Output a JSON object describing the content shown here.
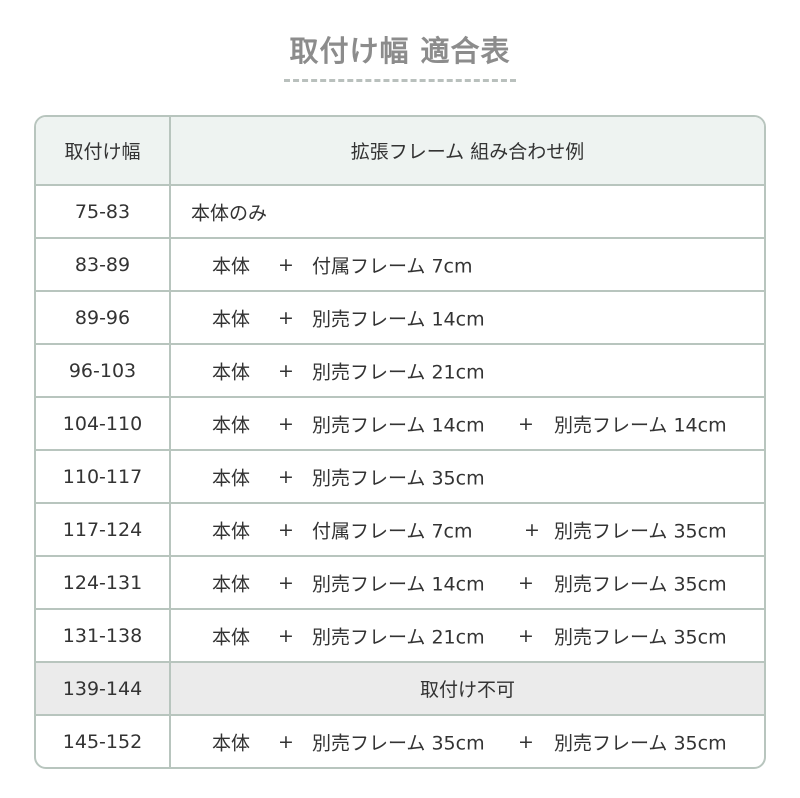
{
  "title": "取付け幅 適合表",
  "table": {
    "headers": [
      "取付け幅",
      "拡張フレーム 組み合わせ例"
    ],
    "rows": [
      {
        "width": "75-83",
        "parts": [
          "本体のみ"
        ]
      },
      {
        "width": "83-89",
        "parts": [
          "本体",
          "+",
          "付属フレーム 7cm"
        ]
      },
      {
        "width": "89-96",
        "parts": [
          "本体",
          "+",
          "別売フレーム 14cm"
        ]
      },
      {
        "width": "96-103",
        "parts": [
          "本体",
          "+",
          "別売フレーム 21cm"
        ]
      },
      {
        "width": "104-110",
        "parts": [
          "本体",
          "+",
          "別売フレーム 14cm",
          "+",
          "別売フレーム 14cm"
        ]
      },
      {
        "width": "110-117",
        "parts": [
          "本体",
          "+",
          "別売フレーム 35cm"
        ]
      },
      {
        "width": "117-124",
        "parts": [
          "本体",
          "+",
          "付属フレーム 7cm",
          "+",
          "別売フレーム 35cm"
        ]
      },
      {
        "width": "124-131",
        "parts": [
          "本体",
          "+",
          "別売フレーム 14cm",
          "+",
          "別売フレーム 35cm"
        ]
      },
      {
        "width": "131-138",
        "parts": [
          "本体",
          "+",
          "別売フレーム 21cm",
          "+",
          "別売フレーム 35cm"
        ]
      },
      {
        "width": "139-144",
        "unavailable": "取付け不可"
      },
      {
        "width": "145-152",
        "parts": [
          "本体",
          "+",
          "別売フレーム 35cm",
          "+",
          "別売フレーム 35cm"
        ]
      }
    ]
  },
  "colors": {
    "border": "#b8c5be",
    "header_bg": "#eef3f1",
    "unavailable_bg": "#ebebeb",
    "title": "#8c8c8c"
  }
}
